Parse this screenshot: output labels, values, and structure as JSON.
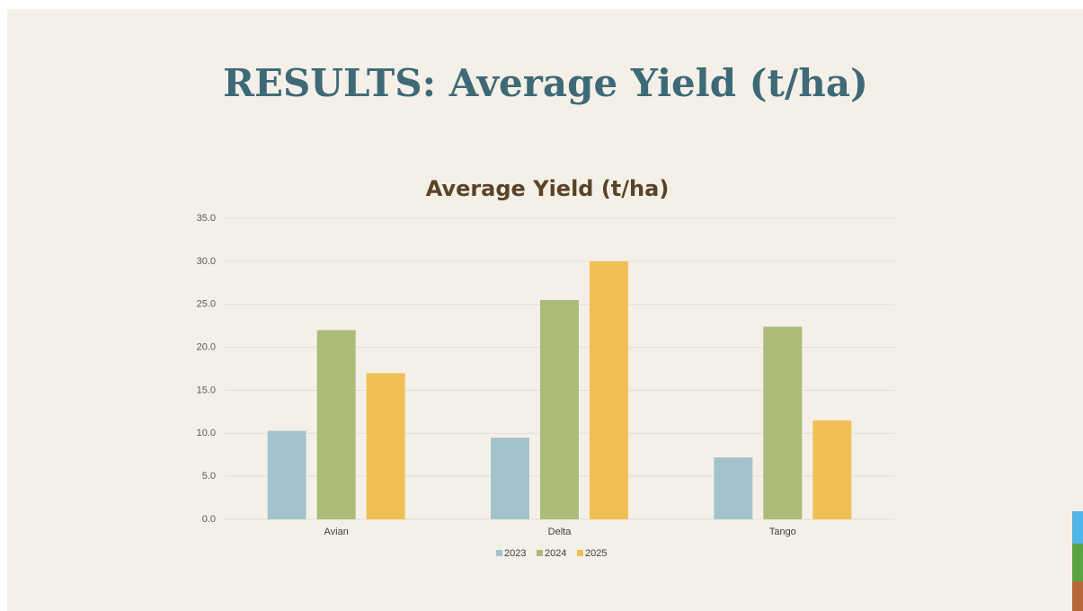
{
  "slide": {
    "title": "RESULTS: Average Yield (t/ha)"
  },
  "chart_data": {
    "type": "bar",
    "title": "Average Yield (t/ha)",
    "categories": [
      "Avian",
      "Delta",
      "Tango"
    ],
    "series": [
      {
        "name": "2023",
        "color": "#a3c3cc",
        "values": [
          10.3,
          9.5,
          7.2
        ]
      },
      {
        "name": "2024",
        "color": "#abbb78",
        "values": [
          22.0,
          25.5,
          22.4
        ]
      },
      {
        "name": "2025",
        "color": "#f0c055",
        "values": [
          17.0,
          30.0,
          11.5
        ]
      }
    ],
    "ylim": [
      0,
      35
    ],
    "yticks": [
      {
        "value": 0,
        "label": "0.0"
      },
      {
        "value": 5,
        "label": "5.0"
      },
      {
        "value": 10,
        "label": "10.0"
      },
      {
        "value": 15,
        "label": "15.0"
      },
      {
        "value": 20,
        "label": "20.0"
      },
      {
        "value": 25,
        "label": "25.0"
      },
      {
        "value": 30,
        "label": "30.0"
      },
      {
        "value": 35,
        "label": "35.0"
      }
    ],
    "grid": true,
    "legend": "bottom"
  }
}
